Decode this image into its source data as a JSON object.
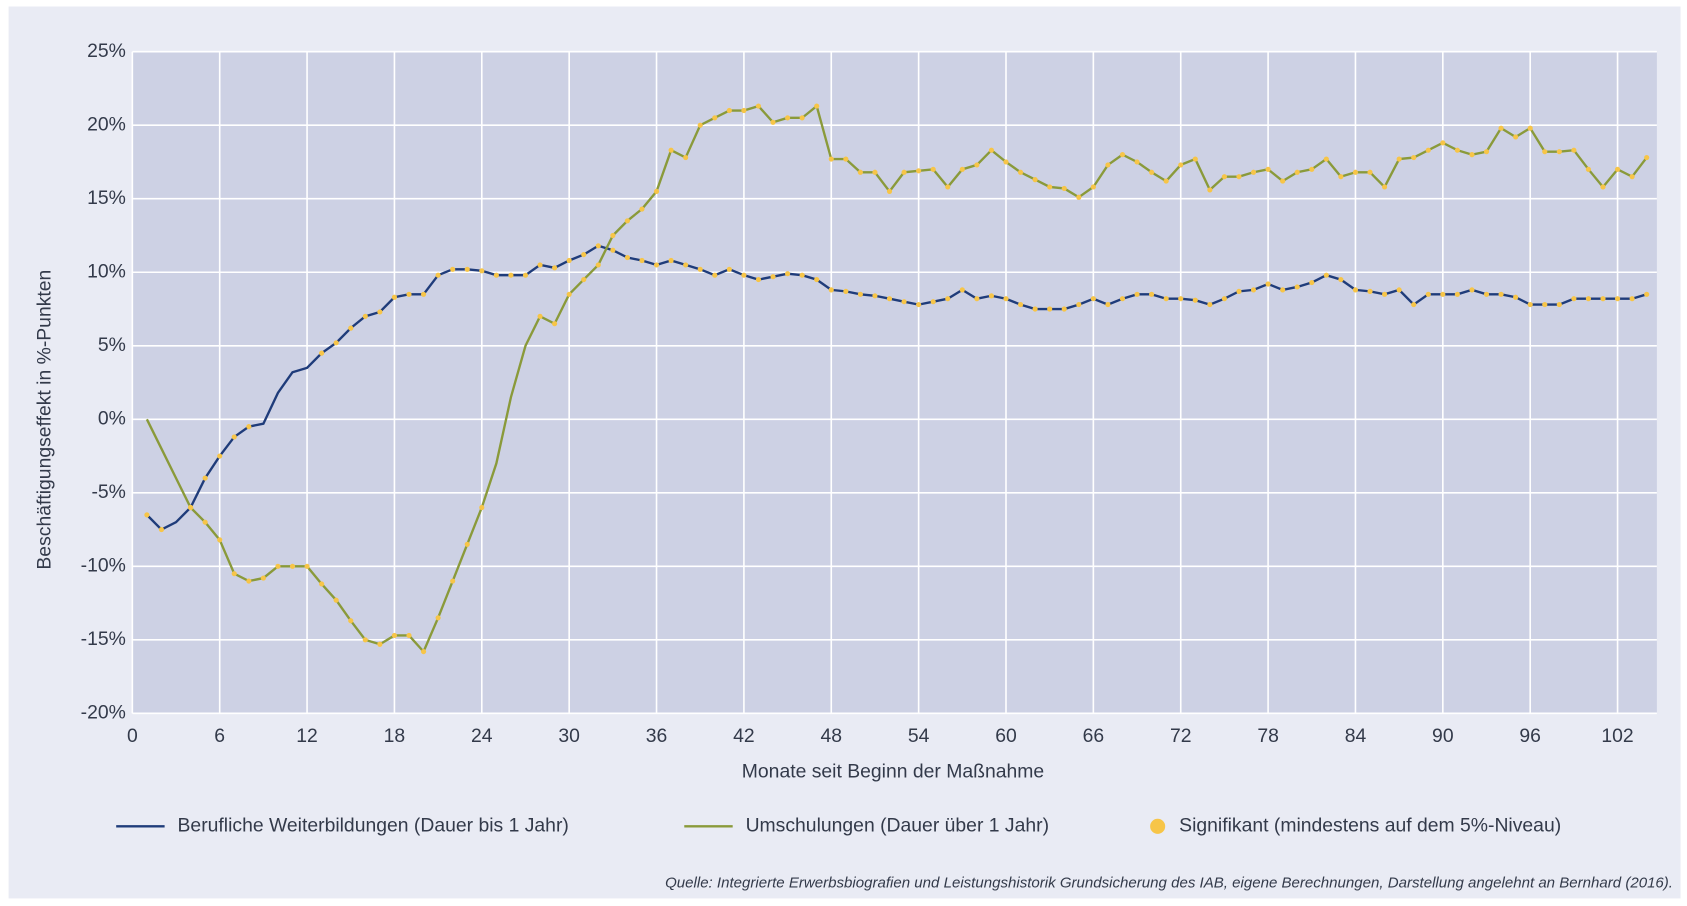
{
  "chart_data": {
    "type": "line",
    "y_label": "Beschäftigungseffekt in %-Punkten",
    "x_label": "Monate seit Beginn der Maßnahme",
    "source": "Quelle: Integrierte Erwerbsbiografien und Leistungshistorik Grundsicherung des IAB, eigene Berechnungen, Darstellung angelehnt an Bernhard (2016).",
    "grid": true,
    "xlim": [
      0,
      104.7
    ],
    "xticks": [
      0,
      6,
      12,
      18,
      24,
      30,
      36,
      42,
      48,
      54,
      60,
      66,
      72,
      78,
      84,
      90,
      96,
      102
    ],
    "ylim": [
      -20,
      25
    ],
    "yticks": [
      {
        "value": -20,
        "label": "-20%"
      },
      {
        "value": -15,
        "label": "-15%"
      },
      {
        "value": -10,
        "label": "-10%"
      },
      {
        "value": -5,
        "label": "-5%"
      },
      {
        "value": 0,
        "label": "0%"
      },
      {
        "value": 5,
        "label": "5%"
      },
      {
        "value": 10,
        "label": "10%"
      },
      {
        "value": 15,
        "label": "15%"
      },
      {
        "value": 20,
        "label": "20%"
      },
      {
        "value": 25,
        "label": "25%"
      }
    ],
    "x": [
      1,
      2,
      3,
      4,
      5,
      6,
      7,
      8,
      9,
      10,
      11,
      12,
      13,
      14,
      15,
      16,
      17,
      18,
      19,
      20,
      21,
      22,
      23,
      24,
      25,
      26,
      27,
      28,
      29,
      30,
      31,
      32,
      33,
      34,
      35,
      36,
      37,
      38,
      39,
      40,
      41,
      42,
      43,
      44,
      45,
      46,
      47,
      48,
      49,
      50,
      51,
      52,
      53,
      54,
      55,
      56,
      57,
      58,
      59,
      60,
      61,
      62,
      63,
      64,
      65,
      66,
      67,
      68,
      69,
      70,
      71,
      72,
      73,
      74,
      75,
      76,
      77,
      78,
      79,
      80,
      81,
      82,
      83,
      84,
      85,
      86,
      87,
      88,
      89,
      90,
      91,
      92,
      93,
      94,
      95,
      96,
      97,
      98,
      99,
      100,
      101,
      102,
      103,
      104
    ],
    "significance_marker": {
      "name": "Signifikant (mindestens auf dem 5%-Niveau)",
      "color": "#f7c548"
    },
    "series": [
      {
        "name": "Berufliche Weiterbildungen (Dauer bis 1 Jahr)",
        "color": "#1f3c7a",
        "values": [
          -6.5,
          -7.5,
          -7,
          -6,
          -4,
          -2.5,
          -1.2,
          -0.5,
          -0.3,
          1.8,
          3.2,
          3.5,
          4.5,
          5.2,
          6.2,
          7.0,
          7.3,
          8.3,
          8.5,
          8.5,
          9.8,
          10.2,
          10.2,
          10.1,
          9.8,
          9.8,
          9.8,
          10.5,
          10.3,
          10.8,
          11.2,
          11.8,
          11.5,
          11.0,
          10.8,
          10.5,
          10.8,
          10.5,
          10.2,
          9.8,
          10.2,
          9.8,
          9.5,
          9.7,
          9.9,
          9.8,
          9.5,
          8.8,
          8.7,
          8.5,
          8.4,
          8.2,
          8.0,
          7.8,
          8.0,
          8.2,
          8.8,
          8.2,
          8.4,
          8.2,
          7.8,
          7.5,
          7.5,
          7.5,
          7.8,
          8.2,
          7.8,
          8.2,
          8.5,
          8.5,
          8.2,
          8.2,
          8.1,
          7.8,
          8.2,
          8.7,
          8.8,
          9.2,
          8.8,
          9.0,
          9.3,
          9.8,
          9.5,
          8.8,
          8.7,
          8.5,
          8.8,
          7.8,
          8.5,
          8.5,
          8.5,
          8.8,
          8.5,
          8.5,
          8.3,
          7.8,
          7.8,
          7.8,
          8.2,
          8.2,
          8.2,
          8.2,
          8.2,
          8.5
        ],
        "significant": [
          true,
          true,
          false,
          true,
          true,
          true,
          true,
          true,
          false,
          false,
          false,
          false,
          true,
          true,
          true,
          true,
          true,
          true,
          true,
          true,
          true,
          true,
          true,
          true,
          true,
          true,
          true,
          true,
          true,
          true,
          true,
          true,
          true,
          true,
          true,
          true,
          true,
          true,
          true,
          true,
          true,
          true,
          true,
          true,
          true,
          true,
          true,
          true,
          true,
          true,
          true,
          true,
          true,
          true,
          true,
          true,
          true,
          true,
          true,
          true,
          true,
          true,
          true,
          true,
          true,
          true,
          true,
          true,
          true,
          true,
          true,
          true,
          true,
          true,
          true,
          true,
          true,
          true,
          true,
          true,
          true,
          true,
          true,
          true,
          true,
          true,
          true,
          true,
          true,
          true,
          true,
          true,
          true,
          true,
          true,
          true,
          true,
          true,
          true,
          true,
          true,
          true,
          true,
          true
        ]
      },
      {
        "name": "Umschulungen (Dauer über 1 Jahr)",
        "color": "#8a9a3a",
        "values": [
          0,
          -2,
          -4,
          -6,
          -7,
          -8.2,
          -10.5,
          -11,
          -10.8,
          -10,
          -10,
          -10,
          -11.2,
          -12.3,
          -13.7,
          -15,
          -15.3,
          -14.7,
          -14.7,
          -15.8,
          -13.5,
          -11,
          -8.5,
          -6,
          -3,
          1.5,
          5,
          7,
          6.5,
          8.5,
          9.5,
          10.5,
          12.5,
          13.5,
          14.3,
          15.5,
          18.3,
          17.8,
          20,
          20.5,
          21,
          21,
          21.3,
          20.2,
          20.5,
          20.5,
          21.3,
          17.7,
          17.7,
          16.8,
          16.8,
          15.5,
          16.8,
          16.9,
          17,
          15.8,
          17,
          17.3,
          18.3,
          17.5,
          16.8,
          16.3,
          15.8,
          15.7,
          15.1,
          15.8,
          17.3,
          18,
          17.5,
          16.8,
          16.2,
          17.3,
          17.7,
          15.6,
          16.5,
          16.5,
          16.8,
          17,
          16.2,
          16.8,
          17,
          17.7,
          16.5,
          16.8,
          16.8,
          15.8,
          17.7,
          17.8,
          18.3,
          18.8,
          18.3,
          18,
          18.2,
          19.8,
          19.2,
          19.8,
          18.2,
          18.2,
          18.3,
          17,
          15.8,
          17,
          16.5,
          17.8
        ],
        "significant": [
          false,
          false,
          false,
          true,
          true,
          true,
          true,
          true,
          true,
          true,
          true,
          true,
          true,
          true,
          true,
          true,
          true,
          true,
          true,
          true,
          true,
          true,
          true,
          true,
          false,
          false,
          false,
          true,
          true,
          true,
          true,
          true,
          true,
          true,
          true,
          true,
          true,
          true,
          true,
          true,
          true,
          true,
          true,
          true,
          true,
          true,
          true,
          true,
          true,
          true,
          true,
          true,
          true,
          true,
          true,
          true,
          true,
          true,
          true,
          true,
          true,
          true,
          true,
          true,
          true,
          true,
          true,
          true,
          true,
          true,
          true,
          true,
          true,
          true,
          true,
          true,
          true,
          true,
          true,
          true,
          true,
          true,
          true,
          true,
          true,
          true,
          true,
          true,
          true,
          true,
          true,
          true,
          true,
          true,
          true,
          true,
          true,
          true,
          true,
          true,
          true,
          true,
          true,
          true
        ]
      }
    ]
  }
}
